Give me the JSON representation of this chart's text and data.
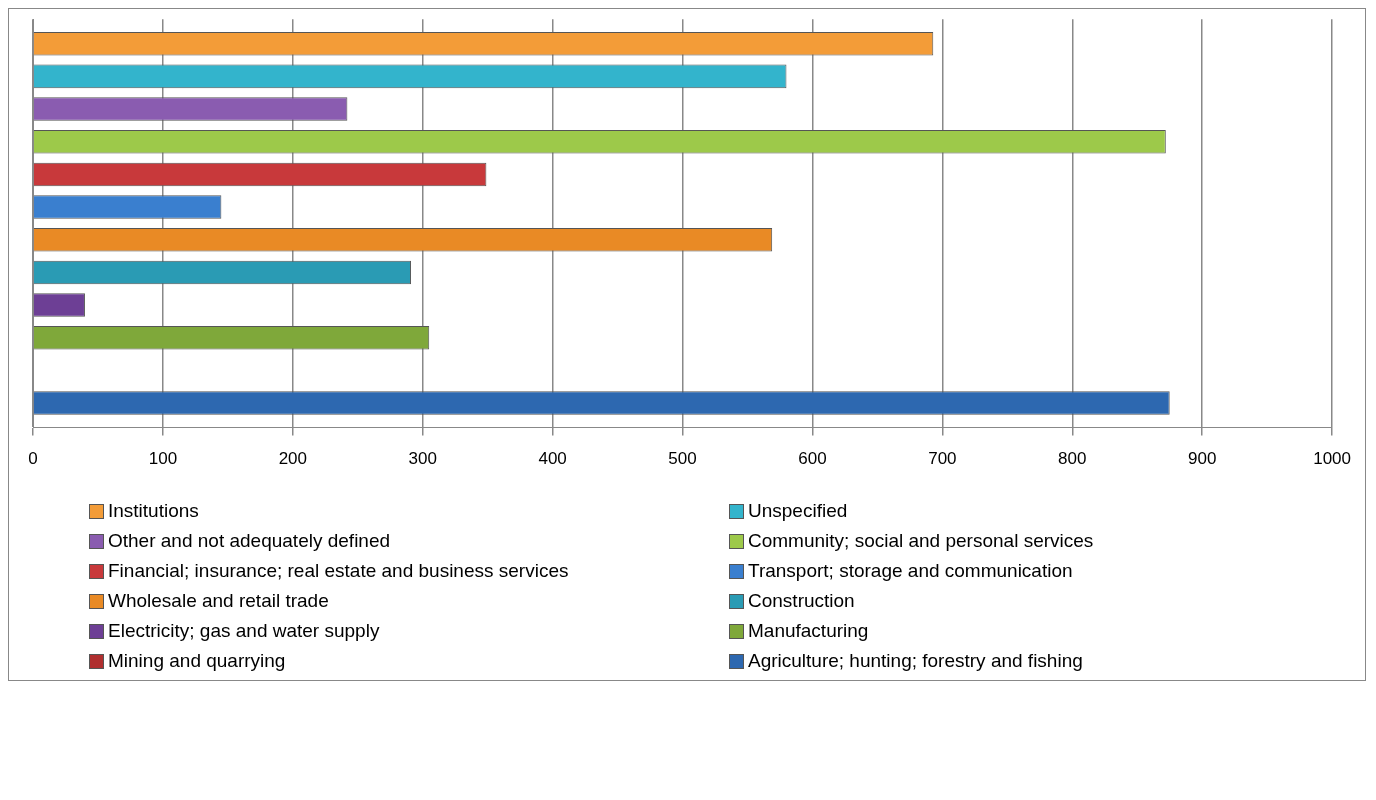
{
  "chart_data": {
    "type": "bar",
    "orientation": "horizontal",
    "categories": [
      null
    ],
    "xlim": [
      0,
      1000
    ],
    "xticks": [
      0,
      100,
      200,
      300,
      400,
      500,
      600,
      700,
      800,
      900,
      1000
    ],
    "grid": "x",
    "legend": "bottom",
    "series": [
      {
        "name": "Institutions",
        "color": "#f39c38",
        "values": [
          693
        ]
      },
      {
        "name": "Unspecified",
        "color": "#33b4cc",
        "values": [
          580
        ]
      },
      {
        "name": "Other and not adequately defined",
        "color": "#8a5cb0",
        "values": [
          242
        ]
      },
      {
        "name": "Community; social and personal services",
        "color": "#9dc94a",
        "values": [
          872
        ]
      },
      {
        "name": "Financial; insurance; real estate and business services",
        "color": "#c8393b",
        "values": [
          349
        ]
      },
      {
        "name": "Transport; storage and communication",
        "color": "#3a7fcf",
        "values": [
          145
        ]
      },
      {
        "name": "Wholesale and retail trade",
        "color": "#e98a25",
        "values": [
          569
        ]
      },
      {
        "name": "Construction",
        "color": "#2a9bb4",
        "values": [
          291
        ]
      },
      {
        "name": "Electricity; gas and water supply",
        "color": "#6d3f95",
        "values": [
          40
        ]
      },
      {
        "name": "Manufacturing",
        "color": "#7fa83a",
        "values": [
          305
        ]
      },
      {
        "name": "Mining and quarrying",
        "color": "#b02f2f",
        "values": [
          0
        ]
      },
      {
        "name": "Agriculture; hunting; forestry and fishing",
        "color": "#2d68b0",
        "values": [
          875
        ]
      }
    ]
  }
}
